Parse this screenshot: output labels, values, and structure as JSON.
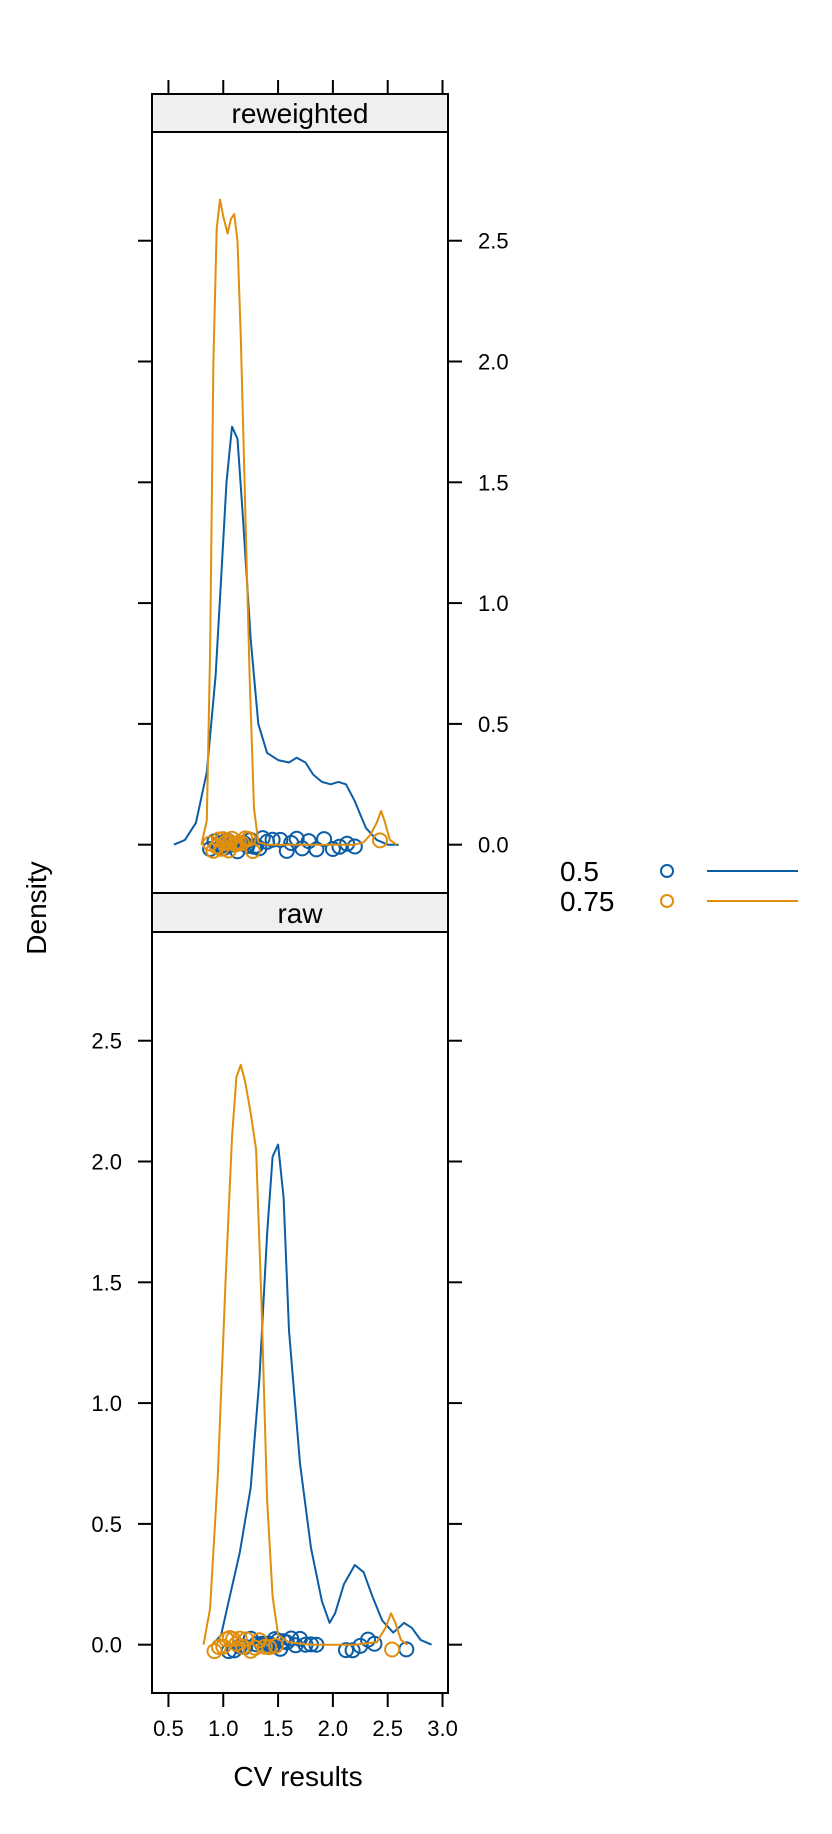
{
  "chart_data": {
    "type": "line",
    "title": "",
    "xlabel": "CV results",
    "ylabel": "Density",
    "xlim": [
      0.35,
      3.05
    ],
    "ylim": [
      -0.2,
      2.95
    ],
    "x_ticks": [
      "0.5",
      "1.0",
      "1.5",
      "2.0",
      "2.5",
      "3.0"
    ],
    "y_ticks": [
      "0.0",
      "0.5",
      "1.0",
      "1.5",
      "2.0",
      "2.5"
    ],
    "legend": {
      "placement": "right",
      "items": [
        {
          "label": "0.5",
          "color": "#0c5da5"
        },
        {
          "label": "0.75",
          "color": "#e08e0b"
        }
      ]
    },
    "series_colors": {
      "0.5": "#0c5da5",
      "0.75": "#e08e0b"
    },
    "panels": [
      {
        "strip": "reweighted",
        "series": [
          {
            "key": "0.5",
            "density": [
              [
                0.55,
                0
              ],
              [
                0.65,
                0.02
              ],
              [
                0.75,
                0.09
              ],
              [
                0.85,
                0.3
              ],
              [
                0.93,
                0.7
              ],
              [
                0.98,
                1.1
              ],
              [
                1.03,
                1.5
              ],
              [
                1.08,
                1.73
              ],
              [
                1.13,
                1.68
              ],
              [
                1.18,
                1.35
              ],
              [
                1.25,
                0.85
              ],
              [
                1.32,
                0.5
              ],
              [
                1.4,
                0.38
              ],
              [
                1.5,
                0.35
              ],
              [
                1.6,
                0.34
              ],
              [
                1.67,
                0.36
              ],
              [
                1.75,
                0.34
              ],
              [
                1.82,
                0.29
              ],
              [
                1.9,
                0.26
              ],
              [
                1.98,
                0.25
              ],
              [
                2.05,
                0.26
              ],
              [
                2.12,
                0.25
              ],
              [
                2.2,
                0.18
              ],
              [
                2.3,
                0.07
              ],
              [
                2.4,
                0.02
              ],
              [
                2.5,
                0
              ],
              [
                2.6,
                0
              ]
            ],
            "rug": [
              0.88,
              0.92,
              0.96,
              0.99,
              1.01,
              1.03,
              1.05,
              1.07,
              1.09,
              1.11,
              1.13,
              1.16,
              1.19,
              1.22,
              1.25,
              1.28,
              1.3,
              1.33,
              1.36,
              1.4,
              1.45,
              1.52,
              1.58,
              1.62,
              1.67,
              1.72,
              1.78,
              1.85,
              1.92,
              2.0,
              2.06,
              2.13,
              2.2
            ]
          },
          {
            "key": "0.75",
            "density": [
              [
                0.8,
                0
              ],
              [
                0.85,
                0.1
              ],
              [
                0.88,
                0.8
              ],
              [
                0.91,
                2.0
              ],
              [
                0.94,
                2.55
              ],
              [
                0.97,
                2.67
              ],
              [
                1.0,
                2.6
              ],
              [
                1.04,
                2.53
              ],
              [
                1.07,
                2.59
              ],
              [
                1.1,
                2.61
              ],
              [
                1.13,
                2.5
              ],
              [
                1.16,
                2.1
              ],
              [
                1.2,
                1.4
              ],
              [
                1.24,
                0.7
              ],
              [
                1.28,
                0.15
              ],
              [
                1.32,
                0.01
              ],
              [
                1.4,
                0
              ],
              [
                1.6,
                0
              ],
              [
                1.8,
                0
              ],
              [
                2.0,
                0
              ],
              [
                2.2,
                0
              ],
              [
                2.28,
                0.01
              ],
              [
                2.34,
                0.04
              ],
              [
                2.4,
                0.09
              ],
              [
                2.44,
                0.14
              ],
              [
                2.47,
                0.1
              ],
              [
                2.52,
                0.02
              ],
              [
                2.58,
                0
              ]
            ],
            "rug": [
              0.88,
              0.91,
              0.94,
              0.96,
              0.98,
              1.0,
              1.02,
              1.04,
              1.05,
              1.06,
              1.08,
              1.1,
              1.12,
              1.14,
              1.17,
              1.2,
              1.23,
              1.27,
              2.43
            ]
          }
        ]
      },
      {
        "strip": "raw",
        "series": [
          {
            "key": "0.5",
            "density": [
              [
                0.9,
                0
              ],
              [
                0.98,
                0.04
              ],
              [
                1.05,
                0.18
              ],
              [
                1.15,
                0.38
              ],
              [
                1.25,
                0.65
              ],
              [
                1.33,
                1.1
              ],
              [
                1.4,
                1.7
              ],
              [
                1.45,
                2.02
              ],
              [
                1.5,
                2.07
              ],
              [
                1.55,
                1.85
              ],
              [
                1.6,
                1.3
              ],
              [
                1.7,
                0.75
              ],
              [
                1.8,
                0.4
              ],
              [
                1.9,
                0.18
              ],
              [
                1.97,
                0.09
              ],
              [
                2.02,
                0.13
              ],
              [
                2.1,
                0.25
              ],
              [
                2.2,
                0.33
              ],
              [
                2.28,
                0.3
              ],
              [
                2.36,
                0.2
              ],
              [
                2.45,
                0.1
              ],
              [
                2.55,
                0.05
              ],
              [
                2.65,
                0.09
              ],
              [
                2.72,
                0.07
              ],
              [
                2.8,
                0.02
              ],
              [
                2.9,
                0
              ]
            ],
            "rug": [
              1.05,
              1.1,
              1.15,
              1.2,
              1.25,
              1.3,
              1.35,
              1.38,
              1.4,
              1.42,
              1.45,
              1.47,
              1.5,
              1.52,
              1.55,
              1.58,
              1.62,
              1.66,
              1.7,
              1.75,
              1.8,
              1.85,
              2.12,
              2.18,
              2.25,
              2.32,
              2.38,
              2.67
            ]
          },
          {
            "key": "0.75",
            "density": [
              [
                0.82,
                0
              ],
              [
                0.88,
                0.15
              ],
              [
                0.95,
                0.7
              ],
              [
                1.02,
                1.5
              ],
              [
                1.08,
                2.1
              ],
              [
                1.12,
                2.35
              ],
              [
                1.16,
                2.4
              ],
              [
                1.2,
                2.33
              ],
              [
                1.25,
                2.2
              ],
              [
                1.3,
                2.05
              ],
              [
                1.35,
                1.4
              ],
              [
                1.4,
                0.6
              ],
              [
                1.45,
                0.2
              ],
              [
                1.5,
                0.04
              ],
              [
                1.6,
                0.01
              ],
              [
                1.8,
                0
              ],
              [
                2.0,
                0
              ],
              [
                2.2,
                0
              ],
              [
                2.4,
                0.01
              ],
              [
                2.48,
                0.07
              ],
              [
                2.53,
                0.13
              ],
              [
                2.57,
                0.09
              ],
              [
                2.62,
                0.02
              ],
              [
                2.68,
                0
              ]
            ],
            "rug": [
              0.92,
              0.96,
              1.0,
              1.03,
              1.06,
              1.09,
              1.12,
              1.15,
              1.18,
              1.21,
              1.25,
              1.29,
              1.33,
              1.38,
              1.42,
              1.48,
              2.54
            ]
          }
        ]
      }
    ]
  }
}
